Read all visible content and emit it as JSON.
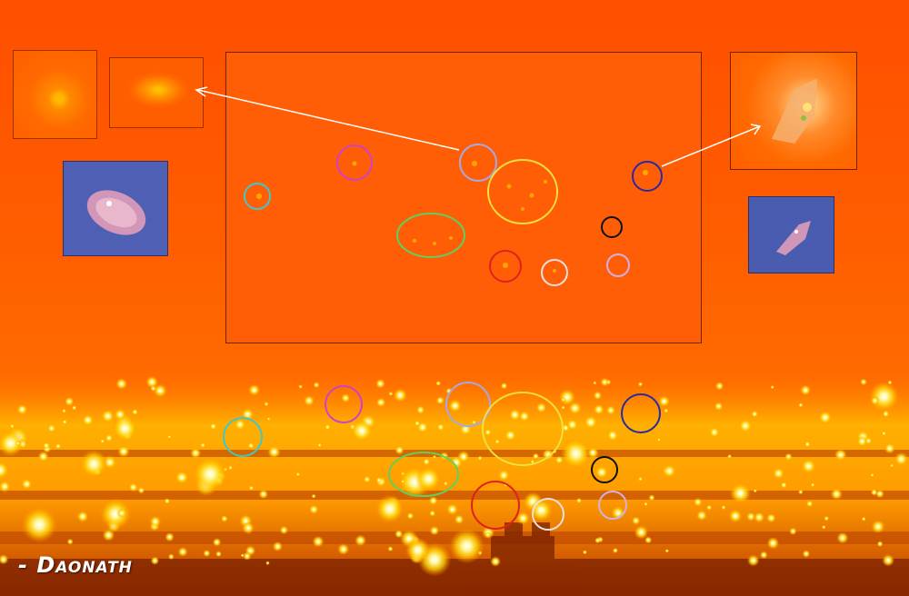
{
  "signature": {
    "text": "- Daonath"
  },
  "colors": {
    "sky": "#ff5a00",
    "city_glow": "#ffd200",
    "thumb_blue": "#4f5fb3"
  }
}
